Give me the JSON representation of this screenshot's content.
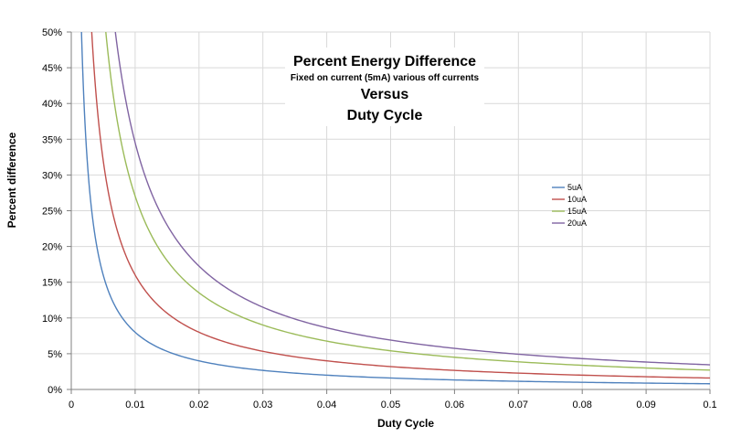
{
  "chart_data": {
    "type": "line",
    "title": "Percent Energy Difference",
    "subtitle": "Fixed on current (5mA) various off currents",
    "title_line3": "Versus",
    "title_line4": "Duty Cycle",
    "xlabel": "Duty Cycle",
    "ylabel": "Percent difference",
    "xlim": [
      0,
      0.1
    ],
    "ylim": [
      0,
      50
    ],
    "x_ticks": [
      0,
      0.01,
      0.02,
      0.03,
      0.04,
      0.05,
      0.06,
      0.07,
      0.08,
      0.09,
      0.1
    ],
    "x_tick_labels": [
      "0",
      "0.01",
      "0.02",
      "0.03",
      "0.04",
      "0.05",
      "0.06",
      "0.07",
      "0.08",
      "0.09",
      "0.1"
    ],
    "y_ticks": [
      0,
      5,
      10,
      15,
      20,
      25,
      30,
      35,
      40,
      45,
      50
    ],
    "y_tick_labels": [
      "0%",
      "5%",
      "10%",
      "15%",
      "20%",
      "25%",
      "30%",
      "35%",
      "40%",
      "45%",
      "50%"
    ],
    "grid": true,
    "legend_position": "right",
    "series": [
      {
        "name": "5uA",
        "color": "#4f81bd",
        "x": [
          0.0016,
          0.002,
          0.003,
          0.004,
          0.005,
          0.006,
          0.008,
          0.01,
          0.015,
          0.02,
          0.03,
          0.04,
          0.05,
          0.06,
          0.07,
          0.08,
          0.09,
          0.1
        ],
        "y": [
          50,
          40,
          26.7,
          20,
          16.0,
          13.3,
          10.0,
          8.0,
          5.33,
          4.0,
          2.67,
          2.0,
          1.6,
          1.33,
          1.14,
          1.0,
          0.89,
          0.8
        ]
      },
      {
        "name": "10uA",
        "color": "#c0504d",
        "x": [
          0.0032,
          0.004,
          0.005,
          0.006,
          0.008,
          0.01,
          0.015,
          0.02,
          0.03,
          0.04,
          0.05,
          0.06,
          0.07,
          0.08,
          0.09,
          0.1
        ],
        "y": [
          50,
          40,
          32.0,
          26.7,
          20.0,
          16.0,
          10.7,
          8.0,
          5.33,
          4.0,
          3.2,
          2.67,
          2.29,
          2.0,
          1.78,
          1.6
        ]
      },
      {
        "name": "15uA",
        "color": "#9bbb59",
        "x": [
          0.0055,
          0.006,
          0.008,
          0.01,
          0.015,
          0.02,
          0.03,
          0.04,
          0.05,
          0.06,
          0.07,
          0.08,
          0.09,
          0.1
        ],
        "y": [
          50,
          45.0,
          33.8,
          27.0,
          18.0,
          13.5,
          9.0,
          6.75,
          5.4,
          4.5,
          3.86,
          3.38,
          3.0,
          2.7
        ]
      },
      {
        "name": "20uA",
        "color": "#8064a2",
        "x": [
          0.0069,
          0.008,
          0.01,
          0.015,
          0.02,
          0.03,
          0.04,
          0.05,
          0.06,
          0.07,
          0.08,
          0.09,
          0.1
        ],
        "y": [
          50,
          43.1,
          34.5,
          23.0,
          17.3,
          11.5,
          8.63,
          6.9,
          5.75,
          4.93,
          4.31,
          3.83,
          3.45
        ]
      }
    ]
  }
}
